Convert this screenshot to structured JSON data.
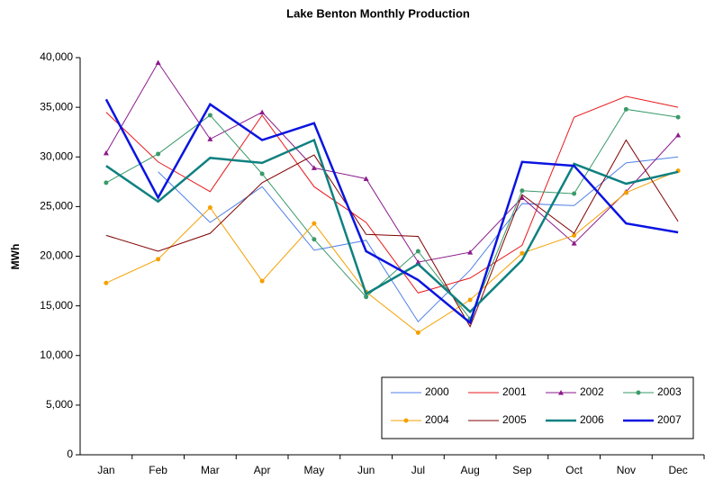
{
  "chart_data": {
    "type": "line",
    "title": "Lake Benton Monthly Production",
    "y_label": "MWh",
    "categories": [
      "Jan",
      "Feb",
      "Mar",
      "Apr",
      "May",
      "Jun",
      "Jul",
      "Aug",
      "Sep",
      "Oct",
      "Nov",
      "Dec"
    ],
    "ylim": [
      0,
      40000
    ],
    "yticks": [
      0,
      {
        "value": 5000,
        "label": "5,000"
      },
      {
        "value": 10000,
        "label": "10,000"
      },
      {
        "value": 15000,
        "label": "15,000"
      },
      {
        "value": 20000,
        "label": "20,000"
      },
      {
        "value": 25000,
        "label": "25,000"
      },
      {
        "value": 30000,
        "label": "30,000"
      },
      {
        "value": 35000,
        "label": "35,000"
      },
      {
        "value": 40000,
        "label": "40,000"
      }
    ],
    "grid": false,
    "legend": "bottom-right",
    "series": [
      {
        "name": "2000",
        "color": "#4f81e8",
        "width": 1,
        "marker": "none",
        "values": [
          null,
          28500,
          23400,
          27000,
          20600,
          21600,
          13400,
          18600,
          25300,
          25100,
          29400,
          30000
        ]
      },
      {
        "name": "2001",
        "color": "#e8191c",
        "width": 1,
        "marker": "none",
        "values": [
          34500,
          29500,
          26500,
          34200,
          27000,
          23400,
          16300,
          17800,
          21100,
          34000,
          36100,
          35000
        ]
      },
      {
        "name": "2002",
        "color": "#8b1a8b",
        "width": 1,
        "marker": "triangle",
        "values": [
          30400,
          39500,
          31800,
          34500,
          28900,
          27800,
          19400,
          20400,
          25900,
          21300,
          26500,
          32200
        ]
      },
      {
        "name": "2003",
        "color": "#3a9a6a",
        "width": 1,
        "marker": "circle",
        "values": [
          27400,
          30300,
          34200,
          28300,
          21700,
          15900,
          20500,
          13700,
          26600,
          26300,
          34800,
          34000
        ]
      },
      {
        "name": "2004",
        "color": "#f5a000",
        "width": 1,
        "marker": "circle",
        "values": [
          17300,
          19700,
          24900,
          17500,
          23300,
          16400,
          12300,
          15600,
          20300,
          22100,
          26400,
          28600
        ]
      },
      {
        "name": "2005",
        "color": "#800000",
        "width": 1,
        "marker": "none",
        "values": [
          22100,
          20500,
          22300,
          27400,
          30200,
          22200,
          22000,
          12900,
          26200,
          22300,
          31700,
          23500
        ]
      },
      {
        "name": "2006",
        "color": "#0f8080",
        "width": 2.5,
        "marker": "none",
        "values": [
          29100,
          25500,
          29900,
          29400,
          31700,
          16200,
          19200,
          14400,
          19600,
          29300,
          27300,
          28500
        ]
      },
      {
        "name": "2007",
        "color": "#0a14e0",
        "width": 2.5,
        "marker": "none",
        "values": [
          35800,
          25900,
          35300,
          31700,
          33400,
          20500,
          17600,
          13300,
          29500,
          29100,
          23300,
          22400
        ]
      }
    ]
  }
}
